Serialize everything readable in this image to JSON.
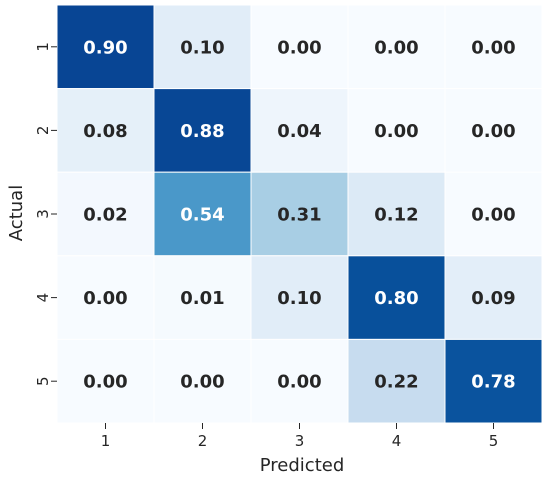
{
  "chart_data": {
    "type": "heatmap",
    "title": "",
    "xlabel": "Predicted",
    "ylabel": "Actual",
    "x_categories": [
      "1",
      "2",
      "3",
      "4",
      "5"
    ],
    "y_categories": [
      "1",
      "2",
      "3",
      "4",
      "5"
    ],
    "values": [
      [
        0.9,
        0.1,
        0.0,
        0.0,
        0.0
      ],
      [
        0.08,
        0.88,
        0.04,
        0.0,
        0.0
      ],
      [
        0.02,
        0.54,
        0.31,
        0.12,
        0.0
      ],
      [
        0.0,
        0.01,
        0.1,
        0.8,
        0.09
      ],
      [
        0.0,
        0.0,
        0.0,
        0.22,
        0.78
      ]
    ],
    "value_format": "0.00",
    "vmin": 0,
    "vmax": 0.9,
    "colormap": "Blues",
    "colors": {
      "low": "#f7fbff",
      "high": "#08459a",
      "text_dark": "#262626",
      "text_light": "#ffffff",
      "grid": "#ffffff"
    },
    "colorbar": false,
    "grid": false
  }
}
